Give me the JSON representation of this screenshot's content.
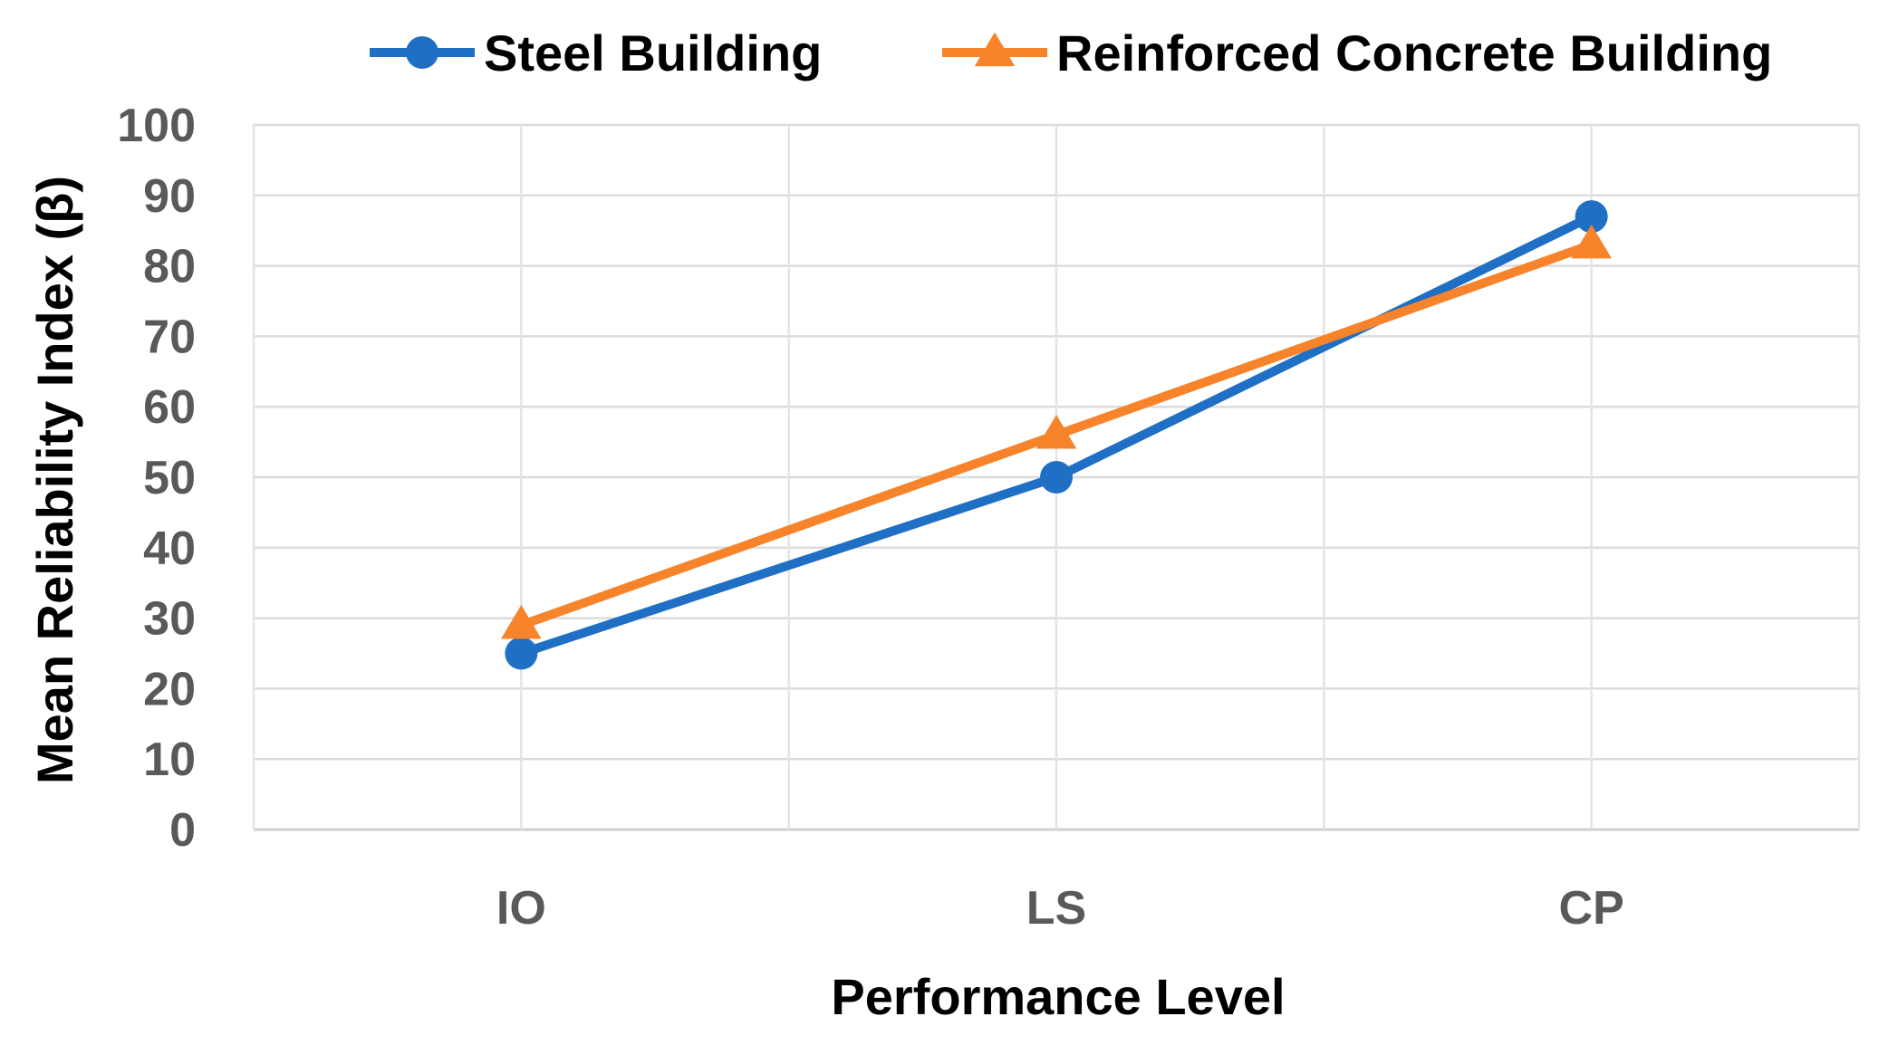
{
  "chart_data": {
    "type": "line",
    "title": "",
    "xlabel": "Performance Level",
    "ylabel": "Mean Reliability Index (β)",
    "categories": [
      "IO",
      "LS",
      "CP"
    ],
    "ylim": [
      0,
      100
    ],
    "yticks": [
      "0",
      "10",
      "20",
      "30",
      "40",
      "50",
      "60",
      "70",
      "80",
      "90",
      "100"
    ],
    "grid": true,
    "legend_position": "top",
    "series": [
      {
        "name": "Steel Building",
        "values": [
          25,
          50,
          87
        ],
        "color": "#1f6fc5",
        "marker": "circle"
      },
      {
        "name": "Reinforced Concrete Building",
        "values": [
          29,
          56,
          83
        ],
        "color": "#f7832b",
        "marker": "triangle"
      }
    ]
  }
}
